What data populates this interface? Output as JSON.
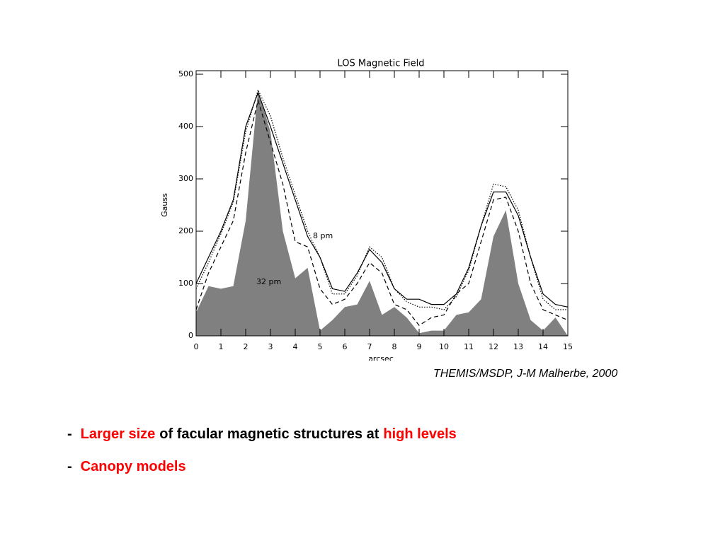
{
  "chart_data": {
    "type": "line",
    "title": "LOS Magnetic Field",
    "xlabel": "arcsec",
    "ylabel": "Gauss",
    "x": [
      0,
      0.5,
      1,
      1.5,
      2,
      2.5,
      3,
      3.5,
      4,
      4.5,
      5,
      5.5,
      6,
      6.5,
      7,
      7.5,
      8,
      8.5,
      9,
      9.5,
      10,
      10.5,
      11,
      11.5,
      12,
      12.5,
      13,
      13.5,
      14,
      14.5,
      15
    ],
    "series": [
      {
        "style": "area",
        "color": "#808080",
        "values": [
          45,
          95,
          90,
          95,
          220,
          470,
          390,
          200,
          110,
          130,
          10,
          30,
          55,
          60,
          105,
          40,
          55,
          35,
          5,
          10,
          10,
          40,
          45,
          70,
          190,
          240,
          100,
          30,
          10,
          35,
          0
        ]
      },
      {
        "style": "solid",
        "color": "#000000",
        "values": [
          100,
          150,
          200,
          260,
          400,
          465,
          400,
          330,
          260,
          190,
          150,
          90,
          85,
          120,
          165,
          140,
          90,
          70,
          70,
          60,
          60,
          80,
          130,
          210,
          275,
          275,
          230,
          150,
          80,
          60,
          55
        ]
      },
      {
        "style": "dashed",
        "color": "#000000",
        "values": [
          50,
          120,
          170,
          220,
          350,
          450,
          370,
          290,
          180,
          170,
          90,
          60,
          70,
          100,
          140,
          120,
          60,
          50,
          20,
          35,
          40,
          80,
          100,
          180,
          260,
          265,
          200,
          100,
          50,
          40,
          30
        ]
      },
      {
        "style": "dotted",
        "color": "#000000",
        "values": [
          90,
          140,
          195,
          255,
          390,
          470,
          420,
          340,
          270,
          200,
          150,
          80,
          80,
          115,
          170,
          150,
          90,
          65,
          55,
          55,
          50,
          75,
          125,
          210,
          290,
          285,
          240,
          150,
          70,
          50,
          50
        ]
      }
    ],
    "annotations": [
      "8 pm",
      "32 pm"
    ],
    "xlim": [
      0,
      15
    ],
    "xticks": [
      0,
      1,
      2,
      3,
      4,
      5,
      6,
      7,
      8,
      9,
      10,
      11,
      12,
      13,
      14,
      15
    ],
    "ylim": [
      0,
      500
    ],
    "yticks": [
      0,
      100,
      200,
      300,
      400,
      500
    ]
  },
  "caption": "THEMIS/MSDP, J-M Malherbe, 2000",
  "bullets": [
    [
      {
        "text": "-",
        "color": "#000000"
      },
      {
        "text": "Larger size",
        "color": "#ff0000"
      },
      {
        "text": "of facular magnetic structures at",
        "color": "#000000"
      },
      {
        "text": "high levels",
        "color": "#ff0000"
      }
    ],
    [
      {
        "text": "-",
        "color": "#000000"
      },
      {
        "text": "Canopy models",
        "color": "#ff0000"
      }
    ]
  ]
}
